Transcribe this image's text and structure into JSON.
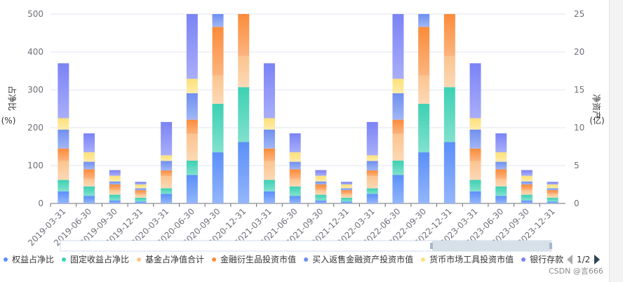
{
  "chart_data": {
    "type": "bar",
    "stacked": true,
    "categories": [
      "2019-03-31",
      "2019-06-30",
      "2019-09-30",
      "2019-12-31",
      "2020-03-31",
      "2020-06-30",
      "2020-09-30",
      "2020-12-31",
      "2021-03-31",
      "2021-06-30",
      "2021-09-30",
      "2021-12-31",
      "2022-03-31",
      "2022-06-30",
      "2022-09-30",
      "2022-12-31",
      "2023-03-31",
      "2023-06-30",
      "2023-09-30",
      "2023-12-31"
    ],
    "ylim": [
      0,
      500
    ],
    "y_ticks": [
      "0",
      "100",
      "200",
      "300",
      "400",
      "500"
    ],
    "ylabel": "占净比(%)",
    "y2lim": [
      0,
      25
    ],
    "y2_ticks": [
      "0",
      "5",
      "10",
      "15",
      "20",
      "25"
    ],
    "y2label": "净资产(亿)",
    "legend": [
      "权益占净比",
      "固定收益占净比",
      "基金占净值合计",
      "金融衍生品投资市值",
      "买入返售金融资产投资市值",
      "货币市场工具投资市值",
      "银行存款"
    ],
    "legend_position": "bottom",
    "legend_page": "1/2",
    "grid": true,
    "series": [
      {
        "name": "权益占净比",
        "color": "#5b8ff9",
        "values": [
          32,
          20,
          8,
          5,
          25,
          75,
          135,
          162,
          32,
          20,
          8,
          5,
          25,
          75,
          135,
          162,
          32,
          20,
          8,
          5
        ]
      },
      {
        "name": "固定收益占净比",
        "color": "#3dd1b3",
        "values": [
          30,
          25,
          15,
          10,
          15,
          38,
          128,
          145,
          30,
          25,
          15,
          10,
          15,
          38,
          128,
          145,
          30,
          25,
          15,
          10
        ]
      },
      {
        "name": "基金占净值合计",
        "color": "#fbc48f",
        "values": [
          50,
          20,
          12,
          10,
          32,
          70,
          75,
          82,
          50,
          20,
          12,
          10,
          32,
          70,
          75,
          82,
          50,
          20,
          12,
          10
        ]
      },
      {
        "name": "金融衍生品投资市值",
        "color": "#fb8c3a",
        "values": [
          33,
          25,
          15,
          10,
          15,
          38,
          128,
          111,
          33,
          25,
          15,
          10,
          15,
          38,
          128,
          111,
          33,
          25,
          15,
          10
        ]
      },
      {
        "name": "买入返售金融资产投资市值",
        "color": "#6f8ff0",
        "values": [
          50,
          20,
          8,
          5,
          25,
          70,
          73,
          0,
          50,
          20,
          8,
          5,
          25,
          70,
          73,
          0,
          50,
          20,
          8,
          5
        ]
      },
      {
        "name": "货币市场工具投资市值",
        "color": "#fde17a",
        "values": [
          30,
          25,
          15,
          10,
          15,
          38,
          0,
          0,
          30,
          25,
          15,
          10,
          15,
          38,
          0,
          0,
          30,
          25,
          15,
          10
        ]
      },
      {
        "name": "银行存款",
        "color": "#7b83f5",
        "values": [
          145,
          50,
          15,
          7,
          88,
          221,
          0,
          0,
          145,
          50,
          15,
          7,
          88,
          221,
          0,
          0,
          145,
          50,
          15,
          7
        ]
      }
    ]
  },
  "watermark": "CSDN @言666"
}
